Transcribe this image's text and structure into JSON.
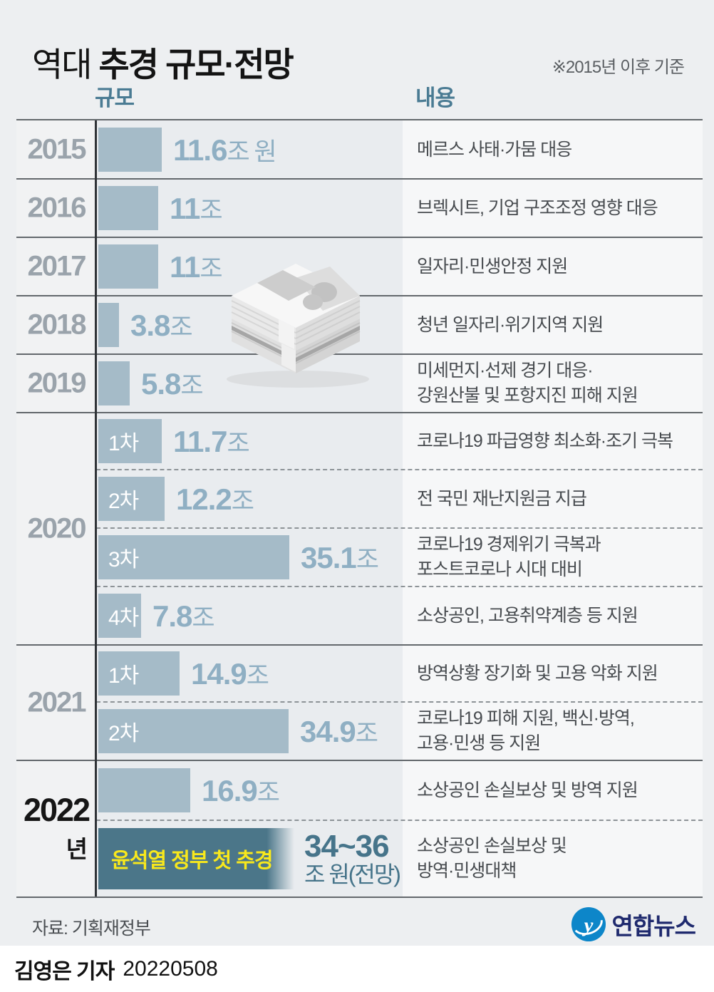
{
  "header": {
    "title_light": "역대",
    "title_bold": " 추경 규모·전망",
    "note": "※2015년 이후 기준"
  },
  "columns": {
    "size": "규모",
    "content": "내용"
  },
  "years": [
    "2015",
    "2016",
    "2017",
    "2018",
    "2019",
    "2020",
    "2021",
    "2022"
  ],
  "year_suffix": "년",
  "chart_data": {
    "type": "bar",
    "title": "역대 추경 규모·전망",
    "note": "※2015년 이후 기준",
    "unit": "조 원",
    "xlabel": "규모",
    "content_label": "내용",
    "rows": [
      {
        "year": "2015",
        "round": "",
        "value": 11.6,
        "value_display": "11.6",
        "suffix": "조 원",
        "desc1": "메르스 사태·가뭄 대응",
        "desc2": ""
      },
      {
        "year": "2016",
        "round": "",
        "value": 11,
        "value_display": "11",
        "suffix": "조",
        "desc1": "브렉시트, 기업 구조조정 영향 대응",
        "desc2": ""
      },
      {
        "year": "2017",
        "round": "",
        "value": 11,
        "value_display": "11",
        "suffix": "조",
        "desc1": "일자리·민생안정 지원",
        "desc2": ""
      },
      {
        "year": "2018",
        "round": "",
        "value": 3.8,
        "value_display": "3.8",
        "suffix": "조",
        "desc1": "청년 일자리·위기지역 지원",
        "desc2": ""
      },
      {
        "year": "2019",
        "round": "",
        "value": 5.8,
        "value_display": "5.8",
        "suffix": "조",
        "desc1": "미세먼지·선제 경기 대응·",
        "desc2": "강원산불 및 포항지진 피해 지원"
      },
      {
        "year": "2020",
        "round": "1차",
        "value": 11.7,
        "value_display": "11.7",
        "suffix": "조",
        "desc1": "코로나19 파급영향 최소화·조기 극복",
        "desc2": ""
      },
      {
        "year": "2020",
        "round": "2차",
        "value": 12.2,
        "value_display": "12.2",
        "suffix": "조",
        "desc1": "전 국민 재난지원금 지급",
        "desc2": ""
      },
      {
        "year": "2020",
        "round": "3차",
        "value": 35.1,
        "value_display": "35.1",
        "suffix": "조",
        "desc1": "코로나19 경제위기 극복과",
        "desc2": "포스트코로나 시대 대비"
      },
      {
        "year": "2020",
        "round": "4차",
        "value": 7.8,
        "value_display": "7.8",
        "suffix": "조",
        "desc1": "소상공인, 고용취약계층 등 지원",
        "desc2": ""
      },
      {
        "year": "2021",
        "round": "1차",
        "value": 14.9,
        "value_display": "14.9",
        "suffix": "조",
        "desc1": "방역상황 장기화 및 고용 악화 지원",
        "desc2": ""
      },
      {
        "year": "2021",
        "round": "2차",
        "value": 34.9,
        "value_display": "34.9",
        "suffix": "조",
        "desc1": "코로나19 피해 지원, 백신·방역,",
        "desc2": "고용·민생 등 지원"
      },
      {
        "year": "2022",
        "round": "",
        "value": 16.9,
        "value_display": "16.9",
        "suffix": "조",
        "desc1": "소상공인 손실보상 및 방역 지원",
        "desc2": ""
      },
      {
        "year": "2022",
        "round": "",
        "value": 36,
        "value_range": "34~36",
        "value_display": "34~36",
        "suffix": "조 원(전망)",
        "bar_label": "윤석열 정부 첫 추경",
        "desc1": "소상공인 손실보상 및",
        "desc2": "방역·민생대책",
        "forecast": true
      }
    ]
  },
  "colors": {
    "bar": "#a5bbc8",
    "bar_forecast": "#4b7689",
    "highlight_text": "#f8e81c",
    "value_text": "#8fafc3",
    "accent_header": "#4a7b93",
    "logo_blue": "#0d86c9",
    "logo_navy": "#1f2a6e"
  },
  "footer": {
    "source": "자료: 기획재정부",
    "agency": "연합뉴스",
    "byline_name": "김영은 기자",
    "byline_date": "20220508"
  }
}
